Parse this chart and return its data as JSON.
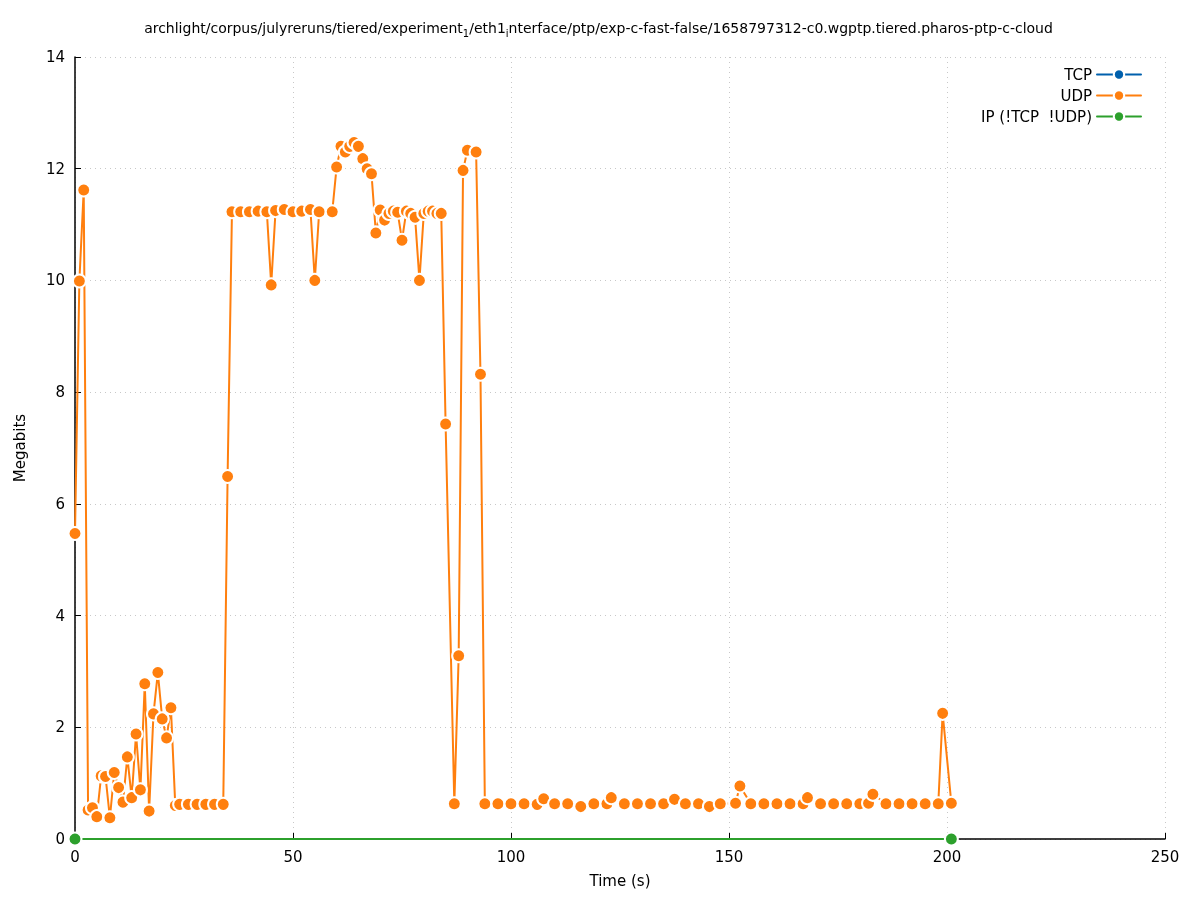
{
  "chart_data": {
    "type": "line",
    "title": "archlight/corpus/julyreruns/tiered/experiment$_{1}$/eth1$_{i}$nterface/ptp/exp-c-fast-false/1658797312-c0.wgptp.tiered.pharos-ptp-c-cloud",
    "xlabel": "Time (s)",
    "ylabel": "Megabits",
    "xlim": [
      0,
      250
    ],
    "xticks": [
      0,
      50,
      100,
      150,
      200,
      250
    ],
    "ylim": [
      0,
      14
    ],
    "yticks": [
      0,
      2,
      4,
      6,
      8,
      10,
      12,
      14
    ],
    "grid": true,
    "legend": "top right",
    "marker": "circle",
    "line_style": "solid",
    "series": [
      {
        "name": "TCP",
        "color": "#0060ad"
      },
      {
        "name": "UDP",
        "color": "#ff7f0e",
        "x": [
          0,
          1,
          2,
          3,
          4,
          5,
          6,
          7,
          8,
          9,
          10,
          11,
          12,
          13,
          14,
          15,
          16,
          17,
          18,
          19,
          20,
          21,
          22,
          23,
          24,
          26,
          28,
          30,
          32,
          34,
          35,
          36,
          38,
          40,
          42,
          44,
          45,
          46,
          48,
          50,
          52,
          54,
          55,
          56,
          59,
          60,
          61,
          62,
          63,
          64,
          65,
          66,
          67,
          68,
          69,
          70,
          71,
          72,
          73,
          74,
          75,
          76,
          77,
          78,
          79,
          80,
          81,
          82,
          83,
          84,
          85,
          87,
          88,
          89,
          90,
          92,
          93,
          94,
          97,
          100,
          103,
          106,
          107.5,
          110,
          113,
          116,
          119,
          122,
          123,
          126,
          129,
          132,
          135,
          137.5,
          140,
          143,
          145.5,
          148,
          151.5,
          152.5,
          155,
          158,
          161,
          164,
          167,
          168,
          171,
          174,
          177,
          180,
          182,
          183,
          186,
          189,
          192,
          195,
          198,
          199,
          201
        ],
        "values": [
          5.47,
          9.99,
          11.62,
          0.52,
          0.56,
          0.4,
          1.13,
          1.12,
          0.38,
          1.19,
          0.92,
          0.66,
          1.47,
          0.74,
          1.88,
          0.88,
          2.78,
          0.5,
          2.24,
          2.98,
          2.15,
          1.81,
          2.35,
          0.6,
          0.62,
          0.62,
          0.62,
          0.62,
          0.62,
          0.62,
          6.49,
          11.23,
          11.23,
          11.23,
          11.24,
          11.23,
          9.92,
          11.25,
          11.27,
          11.23,
          11.24,
          11.27,
          10,
          11.23,
          11.23,
          12.03,
          12.4,
          12.3,
          12.4,
          12.47,
          12.4,
          12.18,
          12,
          11.91,
          10.85,
          11.26,
          11.08,
          11.2,
          11.24,
          11.22,
          10.72,
          11.24,
          11.2,
          11.13,
          10,
          11.2,
          11.24,
          11.24,
          11.2,
          11.2,
          7.43,
          0.63,
          3.28,
          11.97,
          12.33,
          12.3,
          8.32,
          0.63,
          0.63,
          0.63,
          0.63,
          0.62,
          0.72,
          0.63,
          0.63,
          0.58,
          0.63,
          0.63,
          0.74,
          0.63,
          0.63,
          0.63,
          0.63,
          0.71,
          0.63,
          0.63,
          0.58,
          0.63,
          0.64,
          0.95,
          0.63,
          0.63,
          0.63,
          0.63,
          0.63,
          0.74,
          0.63,
          0.63,
          0.63,
          0.63,
          0.64,
          0.8,
          0.63,
          0.63,
          0.63,
          0.63,
          0.63,
          2.25,
          0.64
        ]
      },
      {
        "name": "IP (!TCP  !UDP)",
        "color": "#2ca02c",
        "x": [
          0,
          201
        ],
        "values": [
          0,
          0
        ]
      }
    ]
  }
}
